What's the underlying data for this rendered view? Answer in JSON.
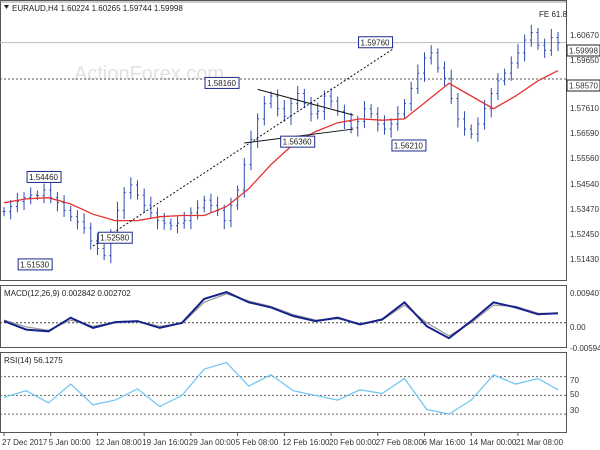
{
  "header": {
    "symbol_line": "EURAUD,H4  1.60224 1.60265 1.59744 1.59998",
    "watermark": "ActionForex.com",
    "fe_label": "FE 61.8"
  },
  "chart_data": [
    {
      "type": "line",
      "panel": "price",
      "ylim": [
        1.507,
        1.616
      ],
      "ytick_labels": [
        "1.60670",
        "1.59650",
        "1.58570",
        "1.57610",
        "1.56590",
        "1.55560",
        "1.54540",
        "1.53470",
        "1.52450",
        "1.51430"
      ],
      "price_tag": "1.59998",
      "level_tag": "1.58570",
      "horizontal_levels": [
        1.616,
        1.6,
        1.5857
      ],
      "series": [
        {
          "name": "",
          "style": "bars",
          "x": [
            0,
            3,
            6,
            9,
            12,
            15,
            18,
            21,
            24,
            27,
            30,
            33,
            36,
            39,
            42,
            45,
            48,
            51,
            54,
            57,
            60,
            63,
            66,
            69,
            72,
            75,
            78,
            81,
            84,
            87,
            90,
            93,
            96,
            99,
            102,
            105,
            108,
            111,
            114,
            117,
            120,
            123,
            126,
            129,
            132,
            135,
            138,
            141,
            144,
            147,
            150,
            153,
            156,
            159,
            162,
            165,
            168,
            171,
            174,
            177,
            180,
            183,
            186,
            189,
            192,
            195,
            198,
            201,
            204,
            207,
            210,
            213,
            216,
            219,
            222,
            225,
            228,
            231,
            234,
            237,
            240,
            243,
            246,
            249
          ],
          "y": [
            1.5335,
            1.5355,
            1.5375,
            1.539,
            1.54,
            1.5398,
            1.542,
            1.539,
            1.537,
            1.534,
            1.5315,
            1.5295,
            1.527,
            1.522,
            1.519,
            1.5162,
            1.524,
            1.534,
            1.541,
            1.544,
            1.54,
            1.536,
            1.533,
            1.53,
            1.529,
            1.528,
            1.529,
            1.53,
            1.533,
            1.535,
            1.538,
            1.536,
            1.534,
            1.53,
            1.536,
            1.542,
            1.552,
            1.562,
            1.57,
            1.576,
            1.579,
            1.574,
            1.571,
            1.576,
            1.58,
            1.576,
            1.572,
            1.573,
            1.579,
            1.577,
            1.573,
            1.569,
            1.5665,
            1.569,
            1.574,
            1.572,
            1.568,
            1.566,
            1.568,
            1.572,
            1.576,
            1.582,
            1.588,
            1.594,
            1.596,
            1.59,
            1.586,
            1.578,
            1.57,
            1.566,
            1.564,
            1.568,
            1.574,
            1.58,
            1.585,
            1.588,
            1.592,
            1.596,
            1.601,
            1.604,
            1.599,
            1.597,
            1.602,
            1.6
          ]
        },
        {
          "name": "",
          "style": "moving-average",
          "x": [
            0,
            10,
            20,
            30,
            40,
            50,
            60,
            70,
            80,
            90,
            100,
            110,
            120,
            130,
            140,
            150,
            160,
            170,
            180,
            190,
            200,
            210,
            220,
            230,
            240,
            249
          ],
          "y": [
            1.537,
            1.5385,
            1.539,
            1.5365,
            1.5325,
            1.53,
            1.53,
            1.5315,
            1.532,
            1.532,
            1.5355,
            1.5425,
            1.552,
            1.56,
            1.565,
            1.5685,
            1.57,
            1.5695,
            1.57,
            1.577,
            1.584,
            1.579,
            1.574,
            1.579,
            1.585,
            1.589
          ]
        }
      ],
      "annotations": [
        {
          "text": "1.54460",
          "x": 18,
          "y": 1.5446
        },
        {
          "text": "1.51530",
          "x": 14,
          "y": 1.5153
        },
        {
          "text": "1.52580",
          "x": 50,
          "y": 1.5258
        },
        {
          "text": "1.58160",
          "x": 98,
          "y": 1.5816
        },
        {
          "text": "1.56360",
          "x": 132,
          "y": 1.5636
        },
        {
          "text": "1.59760",
          "x": 167,
          "y": 1.5976
        },
        {
          "text": "1.56210",
          "x": 182,
          "y": 1.5621
        }
      ],
      "trendlines": [
        {
          "x": [
            40,
            175
          ],
          "y": [
            1.52,
            1.5976
          ]
        },
        {
          "x": [
            114,
            157
          ],
          "y": [
            1.5816,
            1.5715
          ]
        },
        {
          "x": [
            108,
            157
          ],
          "y": [
            1.5605,
            1.566
          ]
        }
      ]
    },
    {
      "type": "line",
      "panel": "macd",
      "title": "MACD(12,26,9) 0.002842 0.002702",
      "ylim": [
        -0.0068,
        0.0102
      ],
      "ytick_labels": [
        "0.009407",
        "0.00",
        "-0.00594"
      ],
      "zero_line": 0.0,
      "series": [
        {
          "name": "",
          "x": [
            0,
            10,
            20,
            30,
            40,
            50,
            60,
            70,
            80,
            90,
            100,
            110,
            120,
            130,
            140,
            150,
            160,
            170,
            180,
            190,
            200,
            210,
            220,
            230,
            240,
            249
          ],
          "y": [
            0.0005,
            -0.002,
            -0.0025,
            0.0015,
            -0.0015,
            0.0002,
            0.0005,
            -0.0015,
            0.0,
            0.007,
            0.009,
            0.006,
            0.0045,
            0.002,
            0.0005,
            0.0015,
            -0.0005,
            0.001,
            0.006,
            -0.001,
            -0.0045,
            0.0005,
            0.006,
            0.0045,
            0.0025,
            0.0028
          ]
        },
        {
          "name": "",
          "x": [
            0,
            10,
            20,
            30,
            40,
            50,
            60,
            70,
            80,
            90,
            100,
            110,
            120,
            130,
            140,
            150,
            160,
            170,
            180,
            190,
            200,
            210,
            220,
            230,
            240,
            249
          ],
          "y": [
            0.0008,
            -0.0012,
            -0.0022,
            0.0008,
            -0.001,
            0.0,
            0.0004,
            -0.001,
            -0.0002,
            0.006,
            0.0085,
            0.0064,
            0.0048,
            0.0024,
            0.0008,
            0.0012,
            -0.0002,
            0.0008,
            0.0052,
            0.0,
            -0.0038,
            0.0,
            0.0052,
            0.0048,
            0.0028,
            0.0027
          ]
        }
      ]
    },
    {
      "type": "line",
      "panel": "rsi",
      "title": "RSI(14) 56.1275",
      "ylim": [
        12,
        92
      ],
      "ytick_labels": [
        "70",
        "50",
        "30"
      ],
      "levels": [
        70,
        50,
        30
      ],
      "series": [
        {
          "name": "",
          "x": [
            0,
            10,
            20,
            30,
            40,
            50,
            60,
            70,
            80,
            90,
            100,
            110,
            120,
            130,
            140,
            150,
            160,
            170,
            180,
            190,
            200,
            210,
            220,
            230,
            240,
            249
          ],
          "y": [
            48,
            55,
            42,
            62,
            40,
            45,
            57,
            38,
            50,
            78,
            85,
            60,
            72,
            55,
            50,
            45,
            56,
            52,
            68,
            35,
            30,
            45,
            72,
            62,
            68,
            56
          ]
        }
      ]
    }
  ],
  "time_axis": {
    "labels": [
      "27 Dec 2017",
      "5 Jan 00:00",
      "12 Jan 08:00",
      "19 Jan 16:00",
      "29 Jan 00:00",
      "5 Feb 08:00",
      "12 Feb 16:00",
      "20 Feb 00:00",
      "27 Feb 08:00",
      "6 Mar 16:00",
      "14 Mar 00:00",
      "21 Mar 08:00"
    ],
    "positions": [
      0,
      21,
      42,
      63,
      84,
      105,
      126,
      147,
      168,
      189,
      210,
      231
    ]
  },
  "colors": {
    "bars": "#2a4bb0",
    "moving_average": "#e53030",
    "macd_main": "#16228a",
    "macd_signal": "#9a9a9a",
    "rsi_line": "#6cc4f2",
    "price_tag_bg": "#ffffff",
    "grid_dash": "#555555",
    "tag_border": "#222222"
  }
}
